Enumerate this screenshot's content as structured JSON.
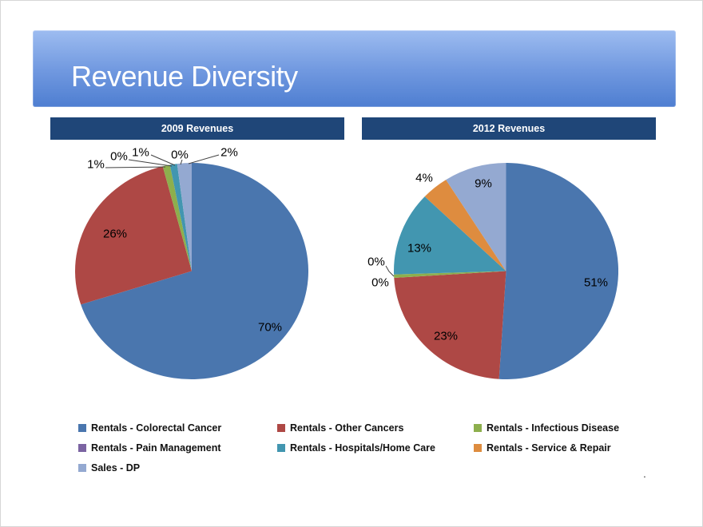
{
  "slide_title": "Revenue Diversity",
  "footer_mark": ".",
  "theme_colors": {
    "banner_top": "#9dbcf0",
    "banner_bottom": "#4e7ed1",
    "header_bar": "#1f4678",
    "header_text": "#ffffff"
  },
  "legend": {
    "position": "bottom",
    "items": [
      {
        "label": "Rentals - Colorectal Cancer",
        "color": "#4A76AE"
      },
      {
        "label": "Rentals - Other Cancers",
        "color": "#AE4845"
      },
      {
        "label": "Rentals - Infectious Disease",
        "color": "#8DAF4D"
      },
      {
        "label": "Rentals - Pain Management",
        "color": "#7B64A2"
      },
      {
        "label": "Rentals - Hospitals/Home Care",
        "color": "#4296B0"
      },
      {
        "label": "Rentals - Service & Repair",
        "color": "#DE8C3F"
      },
      {
        "label": "Sales - DP",
        "color": "#94A9D1"
      }
    ]
  },
  "chart_data": [
    {
      "type": "pie",
      "title": "2009 Revenues",
      "unit": "%",
      "categories": [
        "Rentals - Colorectal Cancer",
        "Rentals - Other Cancers",
        "Rentals - Infectious Disease",
        "Rentals - Pain Management",
        "Rentals - Hospitals/Home Care",
        "Rentals - Service & Repair",
        "Sales - DP"
      ],
      "values": [
        70,
        26,
        1,
        0,
        1,
        0,
        2
      ],
      "labels": [
        "70%",
        "26%",
        "1%",
        "0%",
        "1%",
        "0%",
        "2%"
      ],
      "colors": [
        "#4A76AE",
        "#AE4845",
        "#8DAF4D",
        "#7B64A2",
        "#4296B0",
        "#DE8C3F",
        "#94A9D1"
      ],
      "legend_position": "bottom",
      "grid": false
    },
    {
      "type": "pie",
      "title": "2012 Revenues",
      "unit": "%",
      "categories": [
        "Rentals - Colorectal Cancer",
        "Rentals - Other Cancers",
        "Rentals - Infectious Disease",
        "Rentals - Pain Management",
        "Rentals - Hospitals/Home Care",
        "Rentals - Service & Repair",
        "Sales - DP"
      ],
      "values": [
        51,
        23,
        0,
        0,
        13,
        4,
        9
      ],
      "labels": [
        "51%",
        "23%",
        "0%",
        "0%",
        "13%",
        "4%",
        "9%"
      ],
      "colors": [
        "#4A76AE",
        "#AE4845",
        "#8DAF4D",
        "#7B64A2",
        "#4296B0",
        "#DE8C3F",
        "#94A9D1"
      ],
      "legend_position": "bottom",
      "grid": false
    }
  ]
}
